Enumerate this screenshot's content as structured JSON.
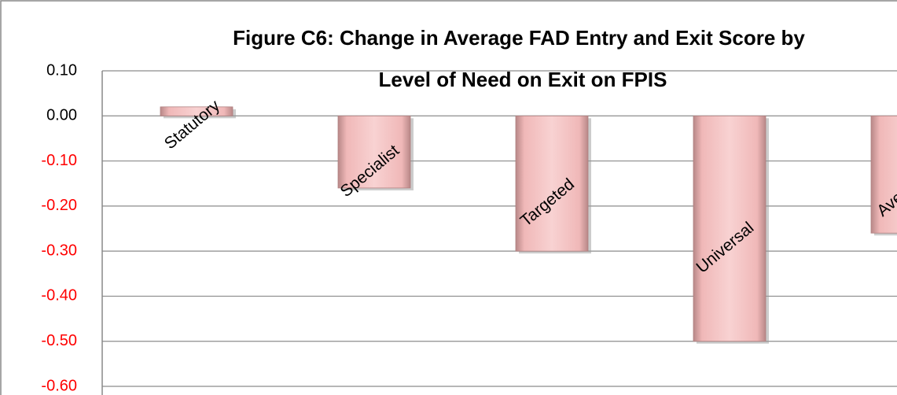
{
  "chart_data": {
    "type": "bar",
    "title": [
      "Figure C6: Change in Average  FAD Entry and Exit Score by",
      "Level of Need on Exit on FPIS"
    ],
    "categories": [
      "Statutory",
      "Specialist",
      "Targeted",
      "Universal",
      "Average"
    ],
    "values": [
      0.02,
      -0.16,
      -0.3,
      -0.5,
      -0.26
    ],
    "color": "#f4c0c0",
    "ylim": [
      -0.6,
      0.1
    ],
    "yticks": [
      {
        "value": 0.1,
        "label": "0.10"
      },
      {
        "value": 0,
        "label": "0.00"
      },
      {
        "value": -0.1,
        "label": "-0.10"
      },
      {
        "value": -0.2,
        "label": "-0.20"
      },
      {
        "value": -0.3,
        "label": "-0.30"
      },
      {
        "value": -0.4,
        "label": "-0.40"
      },
      {
        "value": -0.5,
        "label": "-0.50"
      },
      {
        "value": -0.6,
        "label": "-0.60"
      }
    ],
    "negative_tick_color": "#ff0000",
    "grid": true
  }
}
